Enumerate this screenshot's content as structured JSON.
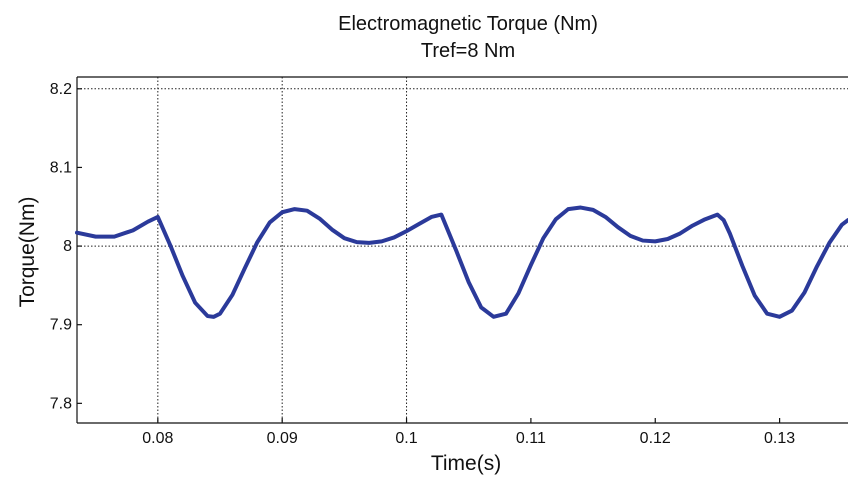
{
  "chart_data": {
    "type": "line",
    "title": "Electromagnetic Torque (Nm)",
    "subtitle": "Tref=8 Nm",
    "xlabel": "Time(s)",
    "ylabel": "Torque(Nm)",
    "xlim": [
      0.0735,
      0.1355
    ],
    "ylim": [
      7.775,
      8.215
    ],
    "xticks": [
      0.08,
      0.09,
      0.1,
      0.11,
      0.12,
      0.13
    ],
    "xtick_labels": [
      "0.08",
      "0.09",
      "0.1",
      "0.11",
      "0.12",
      "0.13"
    ],
    "yticks": [
      7.8,
      7.9,
      8,
      8.1,
      8.2
    ],
    "ytick_labels": [
      "7.8",
      "7.9",
      "8",
      "8.1",
      "8.2"
    ],
    "grid": true,
    "series": [
      {
        "color": "#2b3a9a",
        "x": [
          0.0735,
          0.075,
          0.0765,
          0.078,
          0.0792,
          0.08,
          0.081,
          0.082,
          0.083,
          0.084,
          0.0845,
          0.085,
          0.086,
          0.087,
          0.088,
          0.089,
          0.09,
          0.091,
          0.092,
          0.093,
          0.094,
          0.095,
          0.096,
          0.097,
          0.098,
          0.099,
          0.1,
          0.101,
          0.102,
          0.1028,
          0.104,
          0.105,
          0.106,
          0.107,
          0.108,
          0.109,
          0.11,
          0.111,
          0.112,
          0.113,
          0.114,
          0.115,
          0.116,
          0.117,
          0.118,
          0.119,
          0.12,
          0.121,
          0.122,
          0.123,
          0.124,
          0.125,
          0.1255,
          0.126,
          0.127,
          0.128,
          0.129,
          0.13,
          0.131,
          0.132,
          0.133,
          0.134,
          0.135,
          0.1355
        ],
        "y": [
          8.017,
          8.012,
          8.012,
          8.02,
          8.031,
          8.037,
          8.001,
          7.962,
          7.928,
          7.911,
          7.91,
          7.914,
          7.938,
          7.972,
          8.005,
          8.03,
          8.043,
          8.047,
          8.045,
          8.035,
          8.021,
          8.01,
          8.005,
          8.004,
          8.006,
          8.011,
          8.019,
          8.028,
          8.037,
          8.04,
          7.994,
          7.954,
          7.922,
          7.91,
          7.914,
          7.94,
          7.976,
          8.01,
          8.034,
          8.047,
          8.049,
          8.046,
          8.037,
          8.024,
          8.013,
          8.007,
          8.006,
          8.009,
          8.016,
          8.026,
          8.034,
          8.04,
          8.033,
          8.016,
          7.975,
          7.937,
          7.914,
          7.91,
          7.918,
          7.941,
          7.974,
          8.004,
          8.027,
          8.033
        ]
      }
    ]
  }
}
